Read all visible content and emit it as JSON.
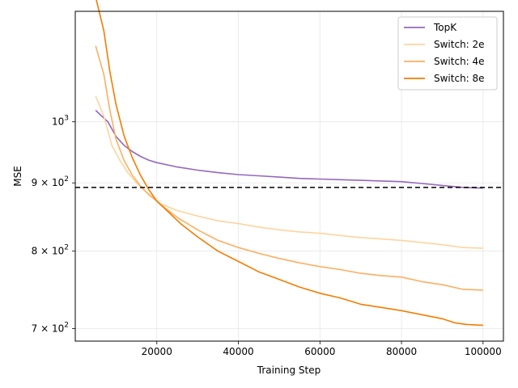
{
  "chart_data": {
    "type": "line",
    "xlabel": "Training Step",
    "ylabel": "MSE",
    "x_scale": "linear",
    "y_scale": "log",
    "xlim": [
      0,
      105000
    ],
    "ylim": [
      685,
      1210
    ],
    "x_ticks": [
      {
        "value": 20000,
        "label": "20000"
      },
      {
        "value": 40000,
        "label": "40000"
      },
      {
        "value": 60000,
        "label": "60000"
      },
      {
        "value": 80000,
        "label": "80000"
      },
      {
        "value": 100000,
        "label": "100000"
      }
    ],
    "y_ticks": [
      {
        "value": 700,
        "label": "7 × 10",
        "exp": "2"
      },
      {
        "value": 800,
        "label": "8 × 10",
        "exp": "2"
      },
      {
        "value": 900,
        "label": "9 × 10",
        "exp": "2"
      },
      {
        "value": 1000,
        "label": "10",
        "exp": "3"
      }
    ],
    "grid": true,
    "legend_position": "top-right",
    "reference_line": {
      "y": 893,
      "style": "dashed",
      "color": "#000000"
    },
    "series": [
      {
        "name": "TopK",
        "color": "#9467bd",
        "points": [
          [
            5000,
            1020
          ],
          [
            8000,
            1000
          ],
          [
            10000,
            975
          ],
          [
            12000,
            960
          ],
          [
            14000,
            950
          ],
          [
            16000,
            942
          ],
          [
            18000,
            936
          ],
          [
            20000,
            932
          ],
          [
            25000,
            925
          ],
          [
            30000,
            920
          ],
          [
            35000,
            916
          ],
          [
            40000,
            913
          ],
          [
            45000,
            911
          ],
          [
            50000,
            909
          ],
          [
            55000,
            907
          ],
          [
            60000,
            906
          ],
          [
            65000,
            905
          ],
          [
            70000,
            904
          ],
          [
            75000,
            903
          ],
          [
            80000,
            902
          ],
          [
            85000,
            899
          ],
          [
            90000,
            896
          ],
          [
            95000,
            893
          ],
          [
            100000,
            892
          ]
        ]
      },
      {
        "name": "Switch: 2e",
        "color": "#fdd49e",
        "points": [
          [
            5000,
            1045
          ],
          [
            7000,
            1010
          ],
          [
            9000,
            960
          ],
          [
            11000,
            935
          ],
          [
            13000,
            915
          ],
          [
            15000,
            900
          ],
          [
            17000,
            888
          ],
          [
            19000,
            878
          ],
          [
            21000,
            868
          ],
          [
            25000,
            858
          ],
          [
            30000,
            850
          ],
          [
            35000,
            843
          ],
          [
            40000,
            839
          ],
          [
            45000,
            834
          ],
          [
            50000,
            830
          ],
          [
            55000,
            827
          ],
          [
            60000,
            825
          ],
          [
            65000,
            822
          ],
          [
            70000,
            819
          ],
          [
            75000,
            817
          ],
          [
            80000,
            815
          ],
          [
            85000,
            812
          ],
          [
            90000,
            809
          ],
          [
            95000,
            805
          ],
          [
            100000,
            804
          ]
        ]
      },
      {
        "name": "Switch: 4e",
        "color": "#fdae61",
        "points": [
          [
            5000,
            1140
          ],
          [
            7000,
            1085
          ],
          [
            8500,
            1020
          ],
          [
            10000,
            970
          ],
          [
            12000,
            935
          ],
          [
            14000,
            912
          ],
          [
            16000,
            895
          ],
          [
            18000,
            882
          ],
          [
            20000,
            872
          ],
          [
            22000,
            862
          ],
          [
            25000,
            848
          ],
          [
            30000,
            830
          ],
          [
            35000,
            815
          ],
          [
            40000,
            805
          ],
          [
            45000,
            797
          ],
          [
            50000,
            790
          ],
          [
            55000,
            784
          ],
          [
            60000,
            779
          ],
          [
            65000,
            775
          ],
          [
            70000,
            770
          ],
          [
            75000,
            767
          ],
          [
            80000,
            765
          ],
          [
            85000,
            759
          ],
          [
            90000,
            755
          ],
          [
            95000,
            749
          ],
          [
            100000,
            748
          ]
        ]
      },
      {
        "name": "Switch: 8e",
        "color": "#f57c00",
        "points": [
          [
            5000,
            1240
          ],
          [
            7000,
            1170
          ],
          [
            8500,
            1090
          ],
          [
            10000,
            1030
          ],
          [
            12000,
            975
          ],
          [
            14000,
            940
          ],
          [
            16000,
            912
          ],
          [
            18000,
            890
          ],
          [
            20000,
            872
          ],
          [
            23000,
            855
          ],
          [
            26000,
            838
          ],
          [
            30000,
            820
          ],
          [
            35000,
            800
          ],
          [
            40000,
            786
          ],
          [
            45000,
            772
          ],
          [
            50000,
            762
          ],
          [
            55000,
            752
          ],
          [
            60000,
            744
          ],
          [
            65000,
            738
          ],
          [
            70000,
            730
          ],
          [
            75000,
            726
          ],
          [
            80000,
            722
          ],
          [
            85000,
            717
          ],
          [
            90000,
            712
          ],
          [
            93000,
            707
          ],
          [
            96000,
            705
          ],
          [
            100000,
            704
          ]
        ]
      }
    ]
  }
}
